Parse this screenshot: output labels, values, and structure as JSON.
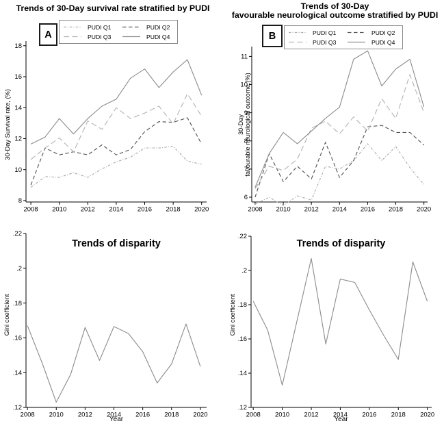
{
  "legend_note": "shared legend shown on both top panels",
  "chart_data": [
    {
      "id": "survival-by-pudi",
      "type": "line",
      "panel_label": "A",
      "title": "Trends of 30-Day survival rate stratified by PUDI",
      "ylabel": "30-Day Survival rate, (%)",
      "xlabel": "",
      "x": [
        2008,
        2009,
        2010,
        2011,
        2012,
        2013,
        2014,
        2015,
        2016,
        2017,
        2018,
        2019,
        2020
      ],
      "xticks": [
        2008,
        2010,
        2012,
        2014,
        2016,
        2018,
        2020
      ],
      "xtick_labels": [
        "2008",
        "2010",
        "2012",
        "2014",
        "2016",
        "2018",
        "2020"
      ],
      "ylim": [
        8,
        18
      ],
      "yticks": [
        8,
        10,
        12,
        14,
        16,
        18
      ],
      "ytick_labels": [
        "8",
        "10",
        "12",
        "14",
        "16",
        "18"
      ],
      "grid": false,
      "legend_position": "top",
      "series": [
        {
          "name": "PUDI Q1",
          "style": "dash_dot",
          "color": "#ababab",
          "values": [
            8.85,
            9.55,
            9.5,
            9.8,
            9.5,
            10.05,
            10.5,
            10.8,
            11.4,
            11.4,
            11.5,
            10.55,
            10.35
          ]
        },
        {
          "name": "PUDI Q2",
          "style": "dashed",
          "color": "#555555",
          "values": [
            9.0,
            11.4,
            10.95,
            11.15,
            10.95,
            11.6,
            10.95,
            11.3,
            12.45,
            13.1,
            13.05,
            13.35,
            11.65
          ]
        },
        {
          "name": "PUDI Q3",
          "style": "long_dash",
          "color": "#b5b5b5",
          "values": [
            10.65,
            11.4,
            12.05,
            11.15,
            13.15,
            12.6,
            14.0,
            13.3,
            13.65,
            14.1,
            12.95,
            14.9,
            13.45
          ]
        },
        {
          "name": "PUDI Q4",
          "style": "solid",
          "color": "#8f8f8f",
          "values": [
            11.65,
            12.1,
            13.3,
            12.3,
            13.3,
            14.1,
            14.55,
            15.9,
            16.5,
            15.3,
            16.3,
            17.1,
            14.8
          ]
        }
      ]
    },
    {
      "id": "neuro-outcome-by-pudi",
      "type": "line",
      "panel_label": "B",
      "title": "Trends of 30-Day favourable neurological outcome stratified by PUDI",
      "title_lines": [
        "Trends of 30-Day",
        "favourable neurological outcome stratified by PUDI"
      ],
      "ylabel_lines": [
        "30-Day",
        "favourable neurological outcome,(%)"
      ],
      "xlabel": "",
      "x": [
        2008,
        2009,
        2010,
        2011,
        2012,
        2013,
        2014,
        2015,
        2016,
        2017,
        2018,
        2019,
        2020
      ],
      "xticks": [
        2008,
        2010,
        2012,
        2014,
        2016,
        2018,
        2020
      ],
      "xtick_labels": [
        "2008",
        "2010",
        "2012",
        "2014",
        "2016",
        "2018",
        "2020"
      ],
      "ylim": [
        6,
        11
      ],
      "yticks": [
        6,
        7,
        8,
        9,
        10,
        11
      ],
      "ytick_labels": [
        "6",
        "7",
        "8",
        "9",
        "10",
        "11"
      ],
      "grid": false,
      "legend_position": "top",
      "series": [
        {
          "name": "PUDI Q1",
          "style": "dash_dot",
          "color": "#ababab",
          "values": [
            5.75,
            6.0,
            5.7,
            6.05,
            5.9,
            7.1,
            7.0,
            7.3,
            7.9,
            7.3,
            7.8,
            7.05,
            6.45
          ]
        },
        {
          "name": "PUDI Q2",
          "style": "dashed",
          "color": "#555555",
          "values": [
            6.0,
            7.55,
            6.55,
            7.1,
            6.65,
            7.95,
            6.7,
            7.3,
            8.5,
            8.55,
            8.3,
            8.3,
            7.85
          ]
        },
        {
          "name": "PUDI Q3",
          "style": "long_dash",
          "color": "#b5b5b5",
          "values": [
            6.3,
            7.1,
            6.95,
            7.35,
            8.45,
            8.7,
            8.25,
            8.85,
            8.35,
            9.5,
            8.8,
            10.35,
            9.0
          ]
        },
        {
          "name": "PUDI Q4",
          "style": "solid",
          "color": "#8f8f8f",
          "values": [
            6.35,
            7.55,
            8.3,
            7.9,
            8.35,
            8.8,
            9.2,
            10.9,
            11.2,
            9.95,
            10.55,
            10.9,
            9.2
          ]
        }
      ]
    },
    {
      "id": "disparity-survival",
      "type": "line",
      "title": "Trends of disparity",
      "ylabel": "Gini coefficient",
      "xlabel": "Year",
      "x": [
        2008,
        2009,
        2010,
        2011,
        2012,
        2013,
        2014,
        2015,
        2016,
        2017,
        2018,
        2019,
        2020
      ],
      "xticks": [
        2008,
        2010,
        2012,
        2014,
        2016,
        2018,
        2020
      ],
      "xtick_labels": [
        "2008",
        "2010",
        "2012",
        "2014",
        "2016",
        "2018",
        "2020"
      ],
      "ylim": [
        0.12,
        0.22
      ],
      "yticks": [
        0.12,
        0.14,
        0.16,
        0.18,
        0.2,
        0.22
      ],
      "ytick_labels": [
        ".12",
        ".14",
        ".16",
        ".18",
        ".2",
        ".22"
      ],
      "grid": false,
      "series": [
        {
          "name": "Gini coefficient",
          "style": "solid",
          "color": "#8f8f8f",
          "values": [
            0.167,
            0.146,
            0.123,
            0.139,
            0.166,
            0.147,
            0.1665,
            0.1625,
            0.152,
            0.134,
            0.145,
            0.168,
            0.1435
          ]
        }
      ]
    },
    {
      "id": "disparity-neuro",
      "type": "line",
      "title": "Trends of disparity",
      "ylabel": "Gini coefficient",
      "xlabel": "Year",
      "x": [
        2008,
        2009,
        2010,
        2011,
        2012,
        2013,
        2014,
        2015,
        2016,
        2017,
        2018,
        2019,
        2020
      ],
      "xticks": [
        2008,
        2010,
        2012,
        2014,
        2016,
        2018,
        2020
      ],
      "xtick_labels": [
        "2008",
        "2010",
        "2012",
        "2014",
        "2016",
        "2018",
        "2020"
      ],
      "ylim": [
        0.12,
        0.22
      ],
      "yticks": [
        0.12,
        0.14,
        0.16,
        0.18,
        0.2,
        0.22
      ],
      "ytick_labels": [
        ".12",
        ".14",
        ".16",
        ".18",
        ".2",
        ".22"
      ],
      "grid": false,
      "series": [
        {
          "name": "Gini coefficient",
          "style": "solid",
          "color": "#8f8f8f",
          "values": [
            0.182,
            0.165,
            0.133,
            0.17,
            0.207,
            0.157,
            0.195,
            0.193,
            0.177,
            0.162,
            0.148,
            0.205,
            0.182
          ]
        }
      ]
    }
  ]
}
